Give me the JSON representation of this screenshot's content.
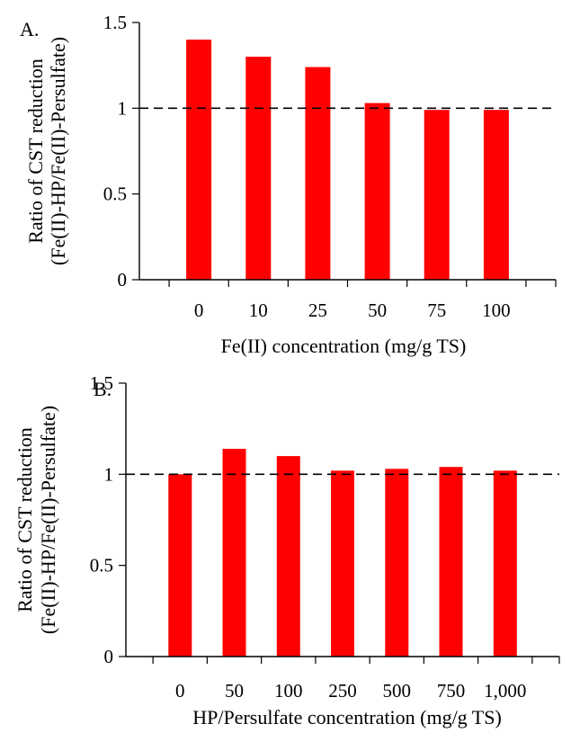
{
  "chart_data": [
    {
      "type": "bar",
      "panel_label": "A.",
      "categories": [
        "0",
        "10",
        "25",
        "50",
        "75",
        "100"
      ],
      "values": [
        1.4,
        1.3,
        1.24,
        1.03,
        0.99,
        0.99
      ],
      "xlabel": "Fe(II) concentration (mg/g TS)",
      "ylabel_lines": [
        "Ratio of CST reduction",
        "(Fe(II)-HP/Fe(II)-Persulfate)"
      ],
      "ylim": [
        0,
        1.5
      ],
      "yticks": [
        "0",
        "0.5",
        "1",
        "1.5"
      ],
      "reference_line": 1,
      "bar_color": "#ff0000",
      "grid": false
    },
    {
      "type": "bar",
      "panel_label": "B.",
      "categories": [
        "0",
        "50",
        "100",
        "250",
        "500",
        "750",
        "1,000"
      ],
      "values": [
        1.0,
        1.14,
        1.1,
        1.02,
        1.03,
        1.04,
        1.02
      ],
      "xlabel": "HP/Persulfate concentration (mg/g TS)",
      "ylabel_lines": [
        "Ratio of CST reduction",
        "(Fe(II)-HP/Fe(II)-Persulfate)"
      ],
      "ylim": [
        0,
        1.5
      ],
      "yticks": [
        "0",
        "0.5",
        "1",
        "1.5"
      ],
      "reference_line": 1,
      "bar_color": "#ff0000",
      "grid": false
    }
  ]
}
